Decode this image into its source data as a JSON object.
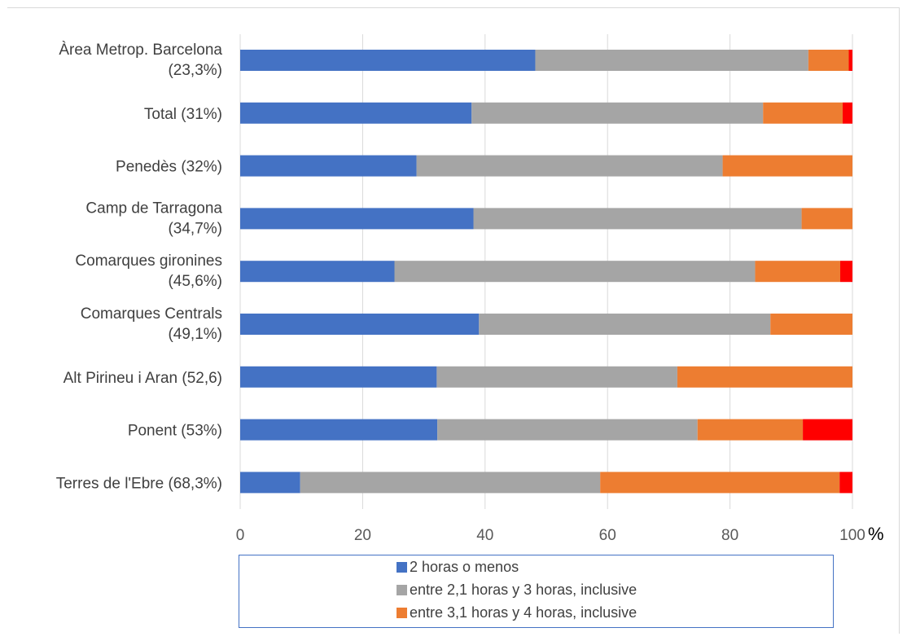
{
  "chart_data": {
    "type": "bar",
    "orientation": "horizontal",
    "stacked": true,
    "title": "",
    "xlabel": "",
    "unit_label": "%",
    "xlim": [
      0,
      100
    ],
    "x_ticks": [
      "0",
      "20",
      "40",
      "60",
      "80",
      "100"
    ],
    "grid": true,
    "legend_position": "bottom",
    "categories": [
      [
        "Àrea Metrop. Barcelona",
        "(23,3%)"
      ],
      [
        "Total (31%)"
      ],
      [
        "Penedès (32%)"
      ],
      [
        "Camp de Tarragona",
        "(34,7%)"
      ],
      [
        "Comarques gironines",
        "(45,6%)"
      ],
      [
        "Comarques Centrals",
        "(49,1%)"
      ],
      [
        "Alt Pirineu i Aran (52,6)"
      ],
      [
        "Ponent (53%)"
      ],
      [
        "Terres de l'Ebre  (68,3%)"
      ]
    ],
    "series": [
      {
        "name": "2 horas o menos",
        "color": "#4472c4",
        "values": [
          48.2,
          37.8,
          28.8,
          38.1,
          25.2,
          39.0,
          32.1,
          32.2,
          9.8
        ]
      },
      {
        "name": "entre 2,1 horas y 3 horas, inclusive",
        "color": "#a5a5a5",
        "values": [
          44.6,
          47.6,
          50.0,
          53.6,
          58.9,
          47.6,
          39.3,
          42.5,
          49.0
        ]
      },
      {
        "name": "entre 3,1 horas y 4 horas, inclusive",
        "color": "#ed7d31",
        "values": [
          6.6,
          13.0,
          21.2,
          8.3,
          13.9,
          13.4,
          28.6,
          17.2,
          39.1
        ]
      },
      {
        "name": "",
        "color": "#ff0000",
        "values": [
          0.6,
          1.6,
          0.0,
          0.0,
          2.0,
          0.0,
          0.0,
          8.1,
          2.1
        ]
      }
    ]
  }
}
